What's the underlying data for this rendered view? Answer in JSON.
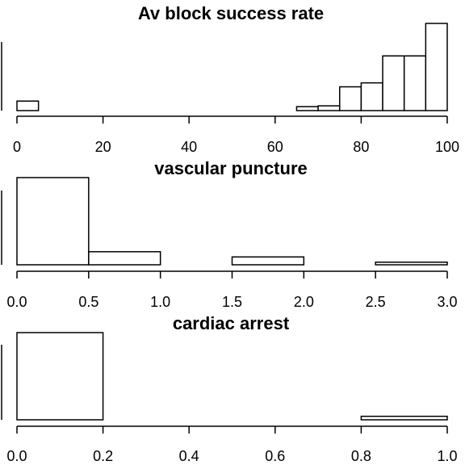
{
  "chart_data": [
    {
      "type": "bar",
      "title": "Av block success rate",
      "xlabel": "",
      "ylabel": "",
      "xlim": [
        0,
        100
      ],
      "x_ticks": [
        0,
        20,
        40,
        60,
        80,
        100
      ],
      "x_tick_labels": [
        "0",
        "20",
        "40",
        "60",
        "80",
        "100"
      ],
      "bins": [
        {
          "x0": 0,
          "x1": 5,
          "height": 1.2
        },
        {
          "x0": 5,
          "x1": 10,
          "height": 0
        },
        {
          "x0": 10,
          "x1": 15,
          "height": 0
        },
        {
          "x0": 15,
          "x1": 20,
          "height": 0
        },
        {
          "x0": 20,
          "x1": 25,
          "height": 0
        },
        {
          "x0": 25,
          "x1": 30,
          "height": 0
        },
        {
          "x0": 30,
          "x1": 35,
          "height": 0
        },
        {
          "x0": 35,
          "x1": 40,
          "height": 0
        },
        {
          "x0": 40,
          "x1": 45,
          "height": 0
        },
        {
          "x0": 45,
          "x1": 50,
          "height": 0
        },
        {
          "x0": 50,
          "x1": 55,
          "height": 0
        },
        {
          "x0": 55,
          "x1": 60,
          "height": 0
        },
        {
          "x0": 60,
          "x1": 65,
          "height": 0
        },
        {
          "x0": 65,
          "x1": 70,
          "height": 0.5
        },
        {
          "x0": 70,
          "x1": 75,
          "height": 0.6
        },
        {
          "x0": 75,
          "x1": 80,
          "height": 3.0
        },
        {
          "x0": 80,
          "x1": 85,
          "height": 3.5
        },
        {
          "x0": 85,
          "x1": 90,
          "height": 6.9
        },
        {
          "x0": 90,
          "x1": 95,
          "height": 6.9
        },
        {
          "x0": 95,
          "x1": 100,
          "height": 11.0
        }
      ]
    },
    {
      "type": "bar",
      "title": "vascular puncture",
      "xlabel": "",
      "ylabel": "",
      "xlim": [
        0,
        3
      ],
      "x_ticks": [
        0,
        0.5,
        1,
        1.5,
        2,
        2.5,
        3
      ],
      "x_tick_labels": [
        "0.0",
        "0.5",
        "1.0",
        "1.5",
        "2.0",
        "2.5",
        "3.0"
      ],
      "bins": [
        {
          "x0": 0,
          "x1": 0.5,
          "height": 10.0
        },
        {
          "x0": 0.5,
          "x1": 1.0,
          "height": 1.5
        },
        {
          "x0": 1.0,
          "x1": 1.5,
          "height": 0
        },
        {
          "x0": 1.5,
          "x1": 2.0,
          "height": 0.9
        },
        {
          "x0": 2.0,
          "x1": 2.5,
          "height": 0
        },
        {
          "x0": 2.5,
          "x1": 3.0,
          "height": 0.3
        }
      ]
    },
    {
      "type": "bar",
      "title": "cardiac arrest",
      "xlabel": "",
      "ylabel": "",
      "xlim": [
        0,
        1
      ],
      "x_ticks": [
        0,
        0.2,
        0.4,
        0.6,
        0.8,
        1.0
      ],
      "x_tick_labels": [
        "0.0",
        "0.2",
        "0.4",
        "0.6",
        "0.8",
        "1.0"
      ],
      "bins": [
        {
          "x0": 0,
          "x1": 0.2,
          "height": 10.0
        },
        {
          "x0": 0.2,
          "x1": 0.4,
          "height": 0
        },
        {
          "x0": 0.4,
          "x1": 0.6,
          "height": 0
        },
        {
          "x0": 0.6,
          "x1": 0.8,
          "height": 0
        },
        {
          "x0": 0.8,
          "x1": 1.0,
          "height": 0.4
        }
      ]
    }
  ]
}
